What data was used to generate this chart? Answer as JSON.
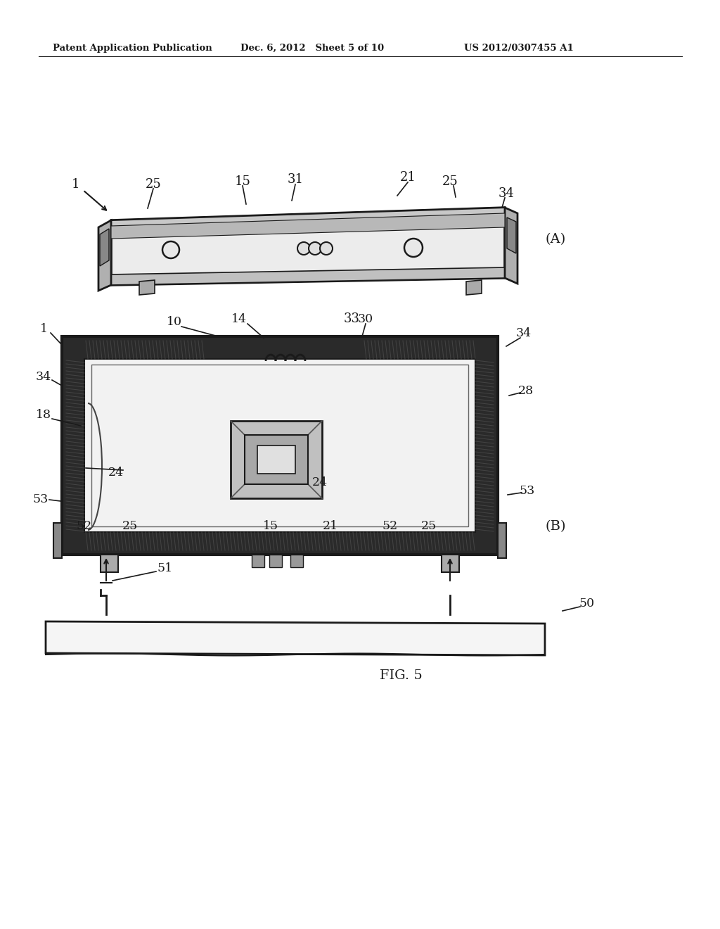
{
  "header_left": "Patent Application Publication",
  "header_center": "Dec. 6, 2012   Sheet 5 of 10",
  "header_right": "US 2012/0307455 A1",
  "fig_label": "FIG. 5",
  "bg_color": "#ffffff",
  "line_color": "#1a1a1a",
  "sketch_color": "#2a2a2a"
}
